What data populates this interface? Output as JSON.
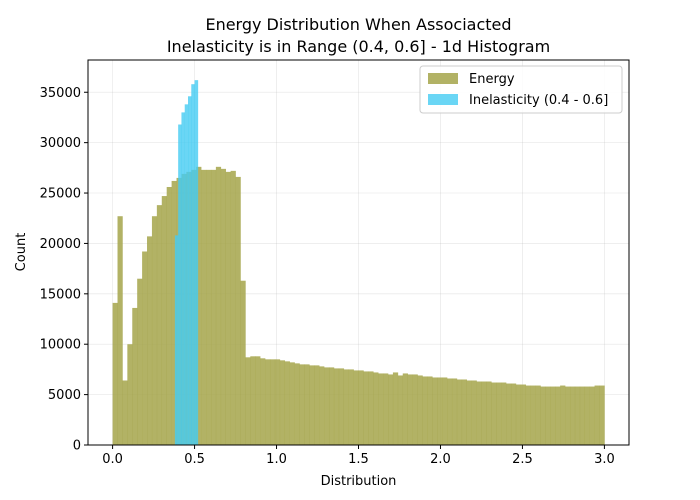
{
  "chart_data": {
    "type": "bar",
    "title_line1": "Energy Distribution When Associacted",
    "title_line2": "Inelasticity is in Range (0.4, 0.6] - 1d Histogram",
    "xlabel": "Distribution",
    "ylabel": "Count",
    "xlim": [
      -0.15,
      3.15
    ],
    "ylim": [
      0,
      38200
    ],
    "xticks": [
      0.0,
      0.5,
      1.0,
      1.5,
      2.0,
      2.5,
      3.0
    ],
    "xtick_labels": [
      "0.0",
      "0.5",
      "1.0",
      "1.5",
      "2.0",
      "2.5",
      "3.0"
    ],
    "yticks": [
      0,
      5000,
      10000,
      15000,
      20000,
      25000,
      30000,
      35000
    ],
    "ytick_labels": [
      "0",
      "5000",
      "10000",
      "15000",
      "20000",
      "25000",
      "30000",
      "35000"
    ],
    "grid": true,
    "legend_position": "top-right",
    "series": [
      {
        "name": "Energy",
        "color": "#a5a54a",
        "bin_start": 0.0,
        "bin_width": 0.03,
        "values": [
          14100,
          22700,
          6400,
          10000,
          13600,
          16500,
          19200,
          20700,
          22700,
          23800,
          24700,
          25600,
          26200,
          26500,
          26900,
          27100,
          27300,
          27600,
          27300,
          27300,
          27300,
          27600,
          27400,
          27100,
          27200,
          26600,
          16300,
          8700,
          8800,
          8800,
          8600,
          8500,
          8500,
          8500,
          8400,
          8300,
          8200,
          8100,
          8000,
          8000,
          7900,
          7900,
          7800,
          7700,
          7700,
          7600,
          7600,
          7500,
          7500,
          7400,
          7400,
          7300,
          7300,
          7200,
          7100,
          7100,
          7000,
          7200,
          6900,
          7100,
          7000,
          7000,
          6900,
          6800,
          6800,
          6700,
          6700,
          6700,
          6600,
          6600,
          6500,
          6500,
          6400,
          6400,
          6300,
          6300,
          6300,
          6200,
          6200,
          6200,
          6100,
          6100,
          6000,
          6000,
          5900,
          5900,
          5900,
          5800,
          5800,
          5800,
          5800,
          5900,
          5800,
          5800,
          5800,
          5800,
          5800,
          5800,
          5900,
          5900
        ]
      },
      {
        "name": "Inelasticity (0.4 - 0.6]",
        "color": "#45ccf2",
        "bin_start": 0.38,
        "bin_width": 0.02,
        "values": [
          20800,
          31800,
          33000,
          33800,
          34600,
          35800,
          36200
        ]
      }
    ]
  }
}
